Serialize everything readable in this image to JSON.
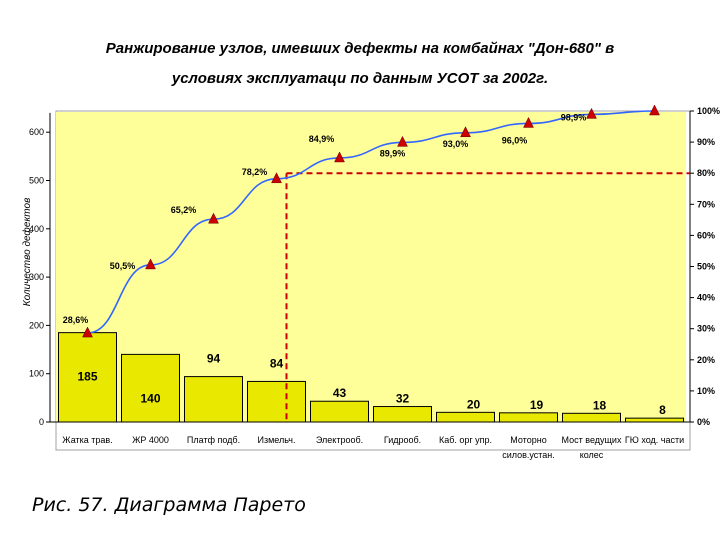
{
  "title_line1": "Ранжирование узлов, имевших дефекты на комбайнах \"Дон-680\" в",
  "title_line2": "условиях эксплуатаци по данным УСОТ за  2002г.",
  "caption": "Рис. 57. Диаграмма Парето",
  "colors": {
    "plot_bg": "#ffff99",
    "bar": "#e8e800",
    "line": "#3366ff",
    "marker": "#cc0000",
    "dashed": "#cc0000"
  },
  "chart_data": {
    "type": "bar",
    "ylabel": "Количество дефектов",
    "ylim": [
      0,
      640
    ],
    "y_ticks": [
      "0",
      "100",
      "200",
      "300",
      "400",
      "500",
      "600"
    ],
    "y_tick_values": [
      0,
      100,
      200,
      300,
      400,
      500,
      600
    ],
    "y2_ticks": [
      "0%",
      "10%",
      "20%",
      "30%",
      "40%",
      "50%",
      "60%",
      "70%",
      "80%",
      "90%",
      "100%"
    ],
    "y2_tick_values": [
      0,
      10,
      20,
      30,
      40,
      50,
      60,
      70,
      80,
      90,
      100
    ],
    "categories": [
      [
        "Жатка трав."
      ],
      [
        "ЖР 4000"
      ],
      [
        "Платф подб."
      ],
      [
        "Измельч."
      ],
      [
        "Электрооб."
      ],
      [
        "Гидрооб."
      ],
      [
        "Каб. орг упр."
      ],
      [
        "Моторно",
        "силов.устан."
      ],
      [
        "Мост ведущих",
        "колес"
      ],
      [
        "ГЮ ход. части"
      ]
    ],
    "series": [
      {
        "type": "bar",
        "values": [
          185,
          140,
          94,
          84,
          43,
          32,
          20,
          19,
          18,
          8
        ],
        "labels": [
          "185",
          "140",
          "94",
          "84",
          "43",
          "32",
          "20",
          "19",
          "18",
          "8"
        ]
      },
      {
        "type": "line",
        "axis": "secondary",
        "values": [
          28.6,
          50.5,
          65.2,
          78.2,
          84.9,
          89.9,
          93.0,
          96.0,
          98.9,
          100
        ],
        "labels": [
          "28,6%",
          "50,5%",
          "65,2%",
          "78,2%",
          "84,9%",
          "89,9%",
          "93,0%",
          "96,0%",
          "98,9%",
          ""
        ]
      }
    ],
    "reference_line": {
      "value": 80,
      "category_index": 3
    },
    "grid": false,
    "legend": "none"
  }
}
